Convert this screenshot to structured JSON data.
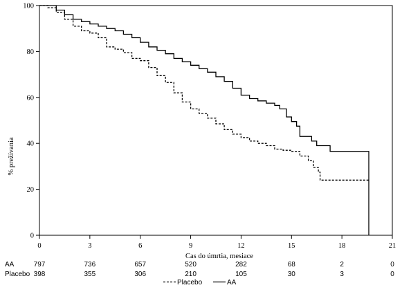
{
  "chart_data": {
    "type": "line",
    "xlabel": "Cas do úmrtia, mesiace",
    "ylabel": "% prežívania",
    "xlim": [
      0,
      21
    ],
    "ylim": [
      0,
      100
    ],
    "x_ticks": [
      0,
      3,
      6,
      9,
      12,
      15,
      18,
      21
    ],
    "y_ticks": [
      0,
      20,
      40,
      60,
      80,
      100
    ],
    "grid": false,
    "series": [
      {
        "name": "AA",
        "style": "solid",
        "color": "#000000",
        "points": [
          [
            0,
            100
          ],
          [
            0.5,
            100
          ],
          [
            1,
            98
          ],
          [
            1.5,
            96
          ],
          [
            2,
            94
          ],
          [
            2.5,
            93
          ],
          [
            3,
            92
          ],
          [
            3.5,
            91
          ],
          [
            4,
            90
          ],
          [
            4.5,
            89
          ],
          [
            5,
            87.5
          ],
          [
            5.5,
            86
          ],
          [
            6,
            84
          ],
          [
            6.5,
            82
          ],
          [
            7,
            80.5
          ],
          [
            7.5,
            79
          ],
          [
            8,
            77
          ],
          [
            8.5,
            75.5
          ],
          [
            9,
            74
          ],
          [
            9.5,
            72.5
          ],
          [
            10,
            71
          ],
          [
            10.5,
            69
          ],
          [
            11,
            67
          ],
          [
            11.5,
            64
          ],
          [
            12,
            61
          ],
          [
            12.5,
            59.5
          ],
          [
            13,
            58.5
          ],
          [
            13.5,
            57.5
          ],
          [
            14,
            56.5
          ],
          [
            14.3,
            55
          ],
          [
            14.7,
            51.5
          ],
          [
            15,
            49.5
          ],
          [
            15.3,
            47.5
          ],
          [
            15.5,
            43
          ],
          [
            16,
            43
          ],
          [
            16.2,
            41
          ],
          [
            16.5,
            39
          ],
          [
            17,
            39
          ],
          [
            17.3,
            36.5
          ],
          [
            19.6,
            36.5
          ],
          [
            19.6,
            0
          ]
        ]
      },
      {
        "name": "Placebo",
        "style": "dashed",
        "color": "#000000",
        "points": [
          [
            0,
            100
          ],
          [
            0.5,
            99
          ],
          [
            1,
            97
          ],
          [
            1.5,
            94
          ],
          [
            2,
            91
          ],
          [
            2.5,
            89
          ],
          [
            3,
            88
          ],
          [
            3.5,
            86
          ],
          [
            4,
            82
          ],
          [
            4.5,
            81
          ],
          [
            5,
            79.5
          ],
          [
            5.5,
            77
          ],
          [
            6,
            76
          ],
          [
            6.5,
            73
          ],
          [
            7,
            69.5
          ],
          [
            7.5,
            66.5
          ],
          [
            8,
            62
          ],
          [
            8.5,
            58
          ],
          [
            9,
            55
          ],
          [
            9.5,
            53
          ],
          [
            10,
            51
          ],
          [
            10.5,
            48.5
          ],
          [
            11,
            46
          ],
          [
            11.5,
            44
          ],
          [
            12,
            42.5
          ],
          [
            12.5,
            41
          ],
          [
            13,
            40
          ],
          [
            13.5,
            39
          ],
          [
            14,
            37.5
          ],
          [
            14.5,
            37
          ],
          [
            15,
            36.5
          ],
          [
            15.5,
            34.5
          ],
          [
            16,
            32.5
          ],
          [
            16.3,
            29.5
          ],
          [
            16.6,
            27.5
          ],
          [
            16.7,
            24
          ],
          [
            19.6,
            24
          ]
        ]
      }
    ],
    "at_risk": {
      "times": [
        0,
        3,
        6,
        9,
        12,
        15,
        18,
        21
      ],
      "rows": [
        {
          "label": "AA",
          "counts": [
            "797",
            "736",
            "657",
            "520",
            "282",
            "68",
            "2",
            "0"
          ]
        },
        {
          "label": "Placebo",
          "counts": [
            "398",
            "355",
            "306",
            "210",
            "105",
            "30",
            "3",
            "0"
          ]
        }
      ]
    },
    "legend": {
      "position": "bottom-center",
      "items": [
        {
          "label": "Placebo",
          "style": "dashed"
        },
        {
          "label": "AA",
          "style": "solid"
        }
      ]
    }
  }
}
